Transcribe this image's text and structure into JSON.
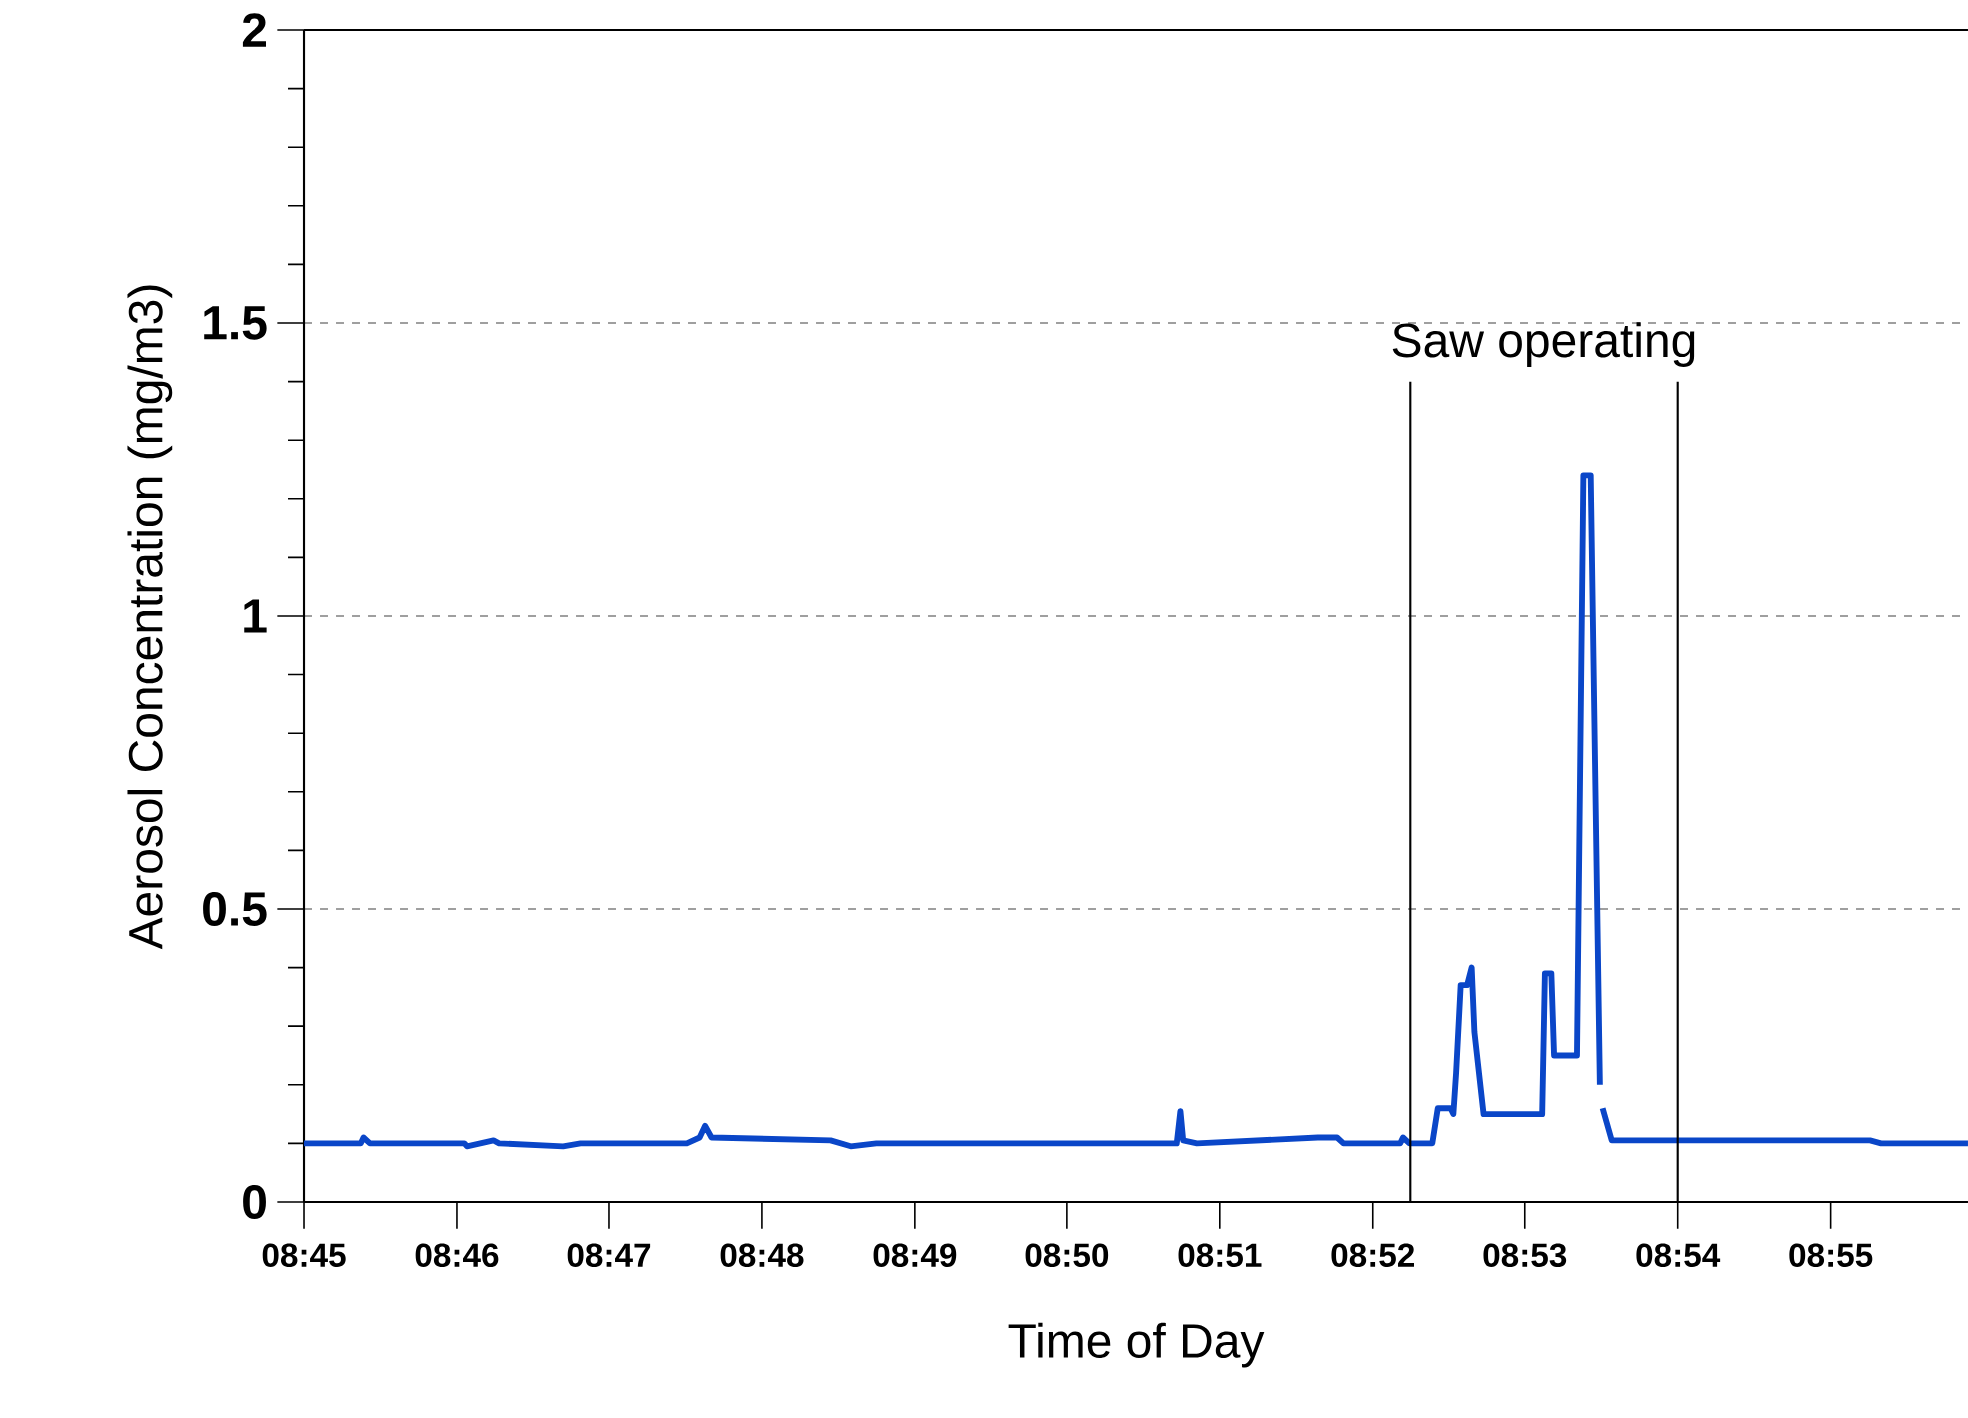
{
  "chart_data": {
    "type": "line",
    "xlabel": "Time of Day",
    "ylabel": "Aerosol Concentration (mg/m3)",
    "annotations": [
      "Saw operating"
    ],
    "series": [
      {
        "color": "#0a46c8",
        "line_style": "solid",
        "marker": "none",
        "x": [
          8.75,
          8.7562,
          8.7565,
          8.7572,
          8.7675,
          8.7678,
          8.7707,
          8.7713,
          8.7783,
          8.7802,
          8.7918,
          8.7932,
          8.7938,
          8.7945,
          8.8075,
          8.8097,
          8.8125,
          8.8453,
          8.8457,
          8.846,
          8.8475,
          8.8607,
          8.8628,
          8.8635,
          8.8697,
          8.87,
          8.8707,
          8.8732,
          8.8738,
          8.8752,
          8.8755,
          8.8758,
          8.8763,
          8.877,
          8.8775,
          8.8778,
          8.8788,
          8.8852,
          8.8855,
          8.8862,
          8.8865,
          8.889,
          8.8897,
          8.8905,
          8.8915,
          8.8916,
          8.8918,
          8.8928,
          8.921,
          8.9222,
          8.9317
        ],
        "values": [
          0.1,
          0.1,
          0.11,
          0.1,
          0.1,
          0.095,
          0.105,
          0.1,
          0.095,
          0.1,
          0.1,
          0.11,
          0.13,
          0.11,
          0.105,
          0.095,
          0.1,
          0.1,
          0.155,
          0.105,
          0.1,
          0.11,
          0.11,
          0.1,
          0.1,
          0.11,
          0.1,
          0.1,
          0.16,
          0.16,
          0.15,
          0.22,
          0.37,
          0.37,
          0.4,
          0.29,
          0.15,
          0.15,
          0.39,
          0.39,
          0.25,
          0.25,
          1.24,
          1.24,
          0.2,
          null,
          0.16,
          0.105,
          0.105,
          0.1,
          0.1
        ]
      }
    ],
    "xlim": [
      8.75,
      8.9317
    ],
    "xticks": [
      {
        "value": 8.75,
        "label": "08:45"
      },
      {
        "value": 8.7667,
        "label": "08:46"
      },
      {
        "value": 8.7833,
        "label": "08:47"
      },
      {
        "value": 8.8,
        "label": "08:48"
      },
      {
        "value": 8.8167,
        "label": "08:49"
      },
      {
        "value": 8.8333,
        "label": "08:50"
      },
      {
        "value": 8.85,
        "label": "08:51"
      },
      {
        "value": 8.8667,
        "label": "08:52"
      },
      {
        "value": 8.8833,
        "label": "08:53"
      },
      {
        "value": 8.9,
        "label": "08:54"
      },
      {
        "value": 8.9167,
        "label": "08:55"
      }
    ],
    "ylim": [
      0,
      2
    ],
    "yticks": [
      0,
      0.5,
      1,
      1.5,
      2
    ],
    "grid": "y",
    "ref_lines": [
      {
        "axis": "x",
        "value": 8.8708,
        "color": "#000000"
      },
      {
        "axis": "x",
        "value": 8.9,
        "color": "#000000"
      }
    ]
  }
}
